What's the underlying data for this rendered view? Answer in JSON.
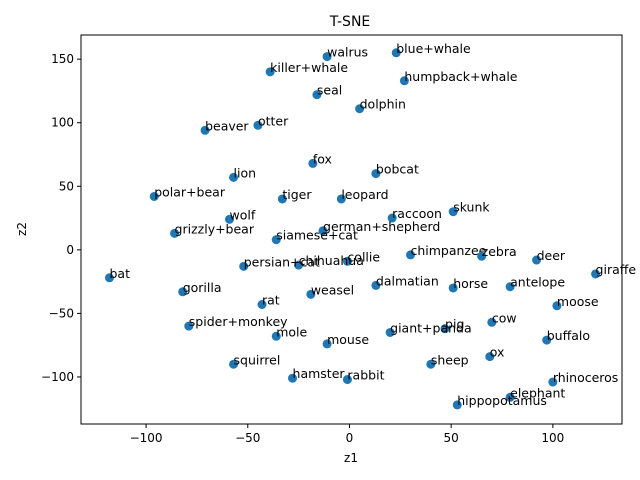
{
  "chart_data": {
    "type": "scatter",
    "title": "T-SNE",
    "xlabel": "z1",
    "ylabel": "z2",
    "xlim": [
      -132,
      134
    ],
    "ylim": [
      -137,
      169
    ],
    "xticks": [
      -100,
      -50,
      0,
      50,
      100
    ],
    "yticks": [
      -100,
      -50,
      0,
      50,
      100,
      150
    ],
    "grid": false,
    "marker_color": "#1f77b4",
    "points": [
      {
        "label": "walrus",
        "x": -11,
        "y": 152
      },
      {
        "label": "blue+whale",
        "x": 23,
        "y": 155
      },
      {
        "label": "killer+whale",
        "x": -39,
        "y": 140
      },
      {
        "label": "humpback+whale",
        "x": 27,
        "y": 133
      },
      {
        "label": "seal",
        "x": -16,
        "y": 122
      },
      {
        "label": "dolphin",
        "x": 5,
        "y": 111
      },
      {
        "label": "otter",
        "x": -45,
        "y": 98
      },
      {
        "label": "beaver",
        "x": -71,
        "y": 94
      },
      {
        "label": "fox",
        "x": -18,
        "y": 68
      },
      {
        "label": "bobcat",
        "x": 13,
        "y": 60
      },
      {
        "label": "lion",
        "x": -57,
        "y": 57
      },
      {
        "label": "polar+bear",
        "x": -96,
        "y": 42
      },
      {
        "label": "tiger",
        "x": -33,
        "y": 40
      },
      {
        "label": "leopard",
        "x": -4,
        "y": 40
      },
      {
        "label": "skunk",
        "x": 51,
        "y": 30
      },
      {
        "label": "raccoon",
        "x": 21,
        "y": 25
      },
      {
        "label": "wolf",
        "x": -59,
        "y": 24
      },
      {
        "label": "german+shepherd",
        "x": -13,
        "y": 15
      },
      {
        "label": "grizzly+bear",
        "x": -86,
        "y": 13
      },
      {
        "label": "siamese+cat",
        "x": -36,
        "y": 8
      },
      {
        "label": "chimpanzee",
        "x": 30,
        "y": -4
      },
      {
        "label": "zebra",
        "x": 65,
        "y": -5
      },
      {
        "label": "collie",
        "x": -1,
        "y": -9
      },
      {
        "label": "deer",
        "x": 92,
        "y": -8
      },
      {
        "label": "chihuahua",
        "x": -25,
        "y": -12
      },
      {
        "label": "persian+cat",
        "x": -52,
        "y": -13
      },
      {
        "label": "giraffe",
        "x": 121,
        "y": -19
      },
      {
        "label": "bat",
        "x": -118,
        "y": -22
      },
      {
        "label": "dalmatian",
        "x": 13,
        "y": -28
      },
      {
        "label": "antelope",
        "x": 79,
        "y": -29
      },
      {
        "label": "horse",
        "x": 51,
        "y": -30
      },
      {
        "label": "gorilla",
        "x": -82,
        "y": -33
      },
      {
        "label": "weasel",
        "x": -19,
        "y": -35
      },
      {
        "label": "rat",
        "x": -43,
        "y": -43
      },
      {
        "label": "moose",
        "x": 102,
        "y": -44
      },
      {
        "label": "cow",
        "x": 70,
        "y": -57
      },
      {
        "label": "spider+monkey",
        "x": -79,
        "y": -60
      },
      {
        "label": "pig",
        "x": 47,
        "y": -62
      },
      {
        "label": "giant+panda",
        "x": 20,
        "y": -65
      },
      {
        "label": "mole",
        "x": -36,
        "y": -68
      },
      {
        "label": "buffalo",
        "x": 97,
        "y": -71
      },
      {
        "label": "mouse",
        "x": -11,
        "y": -74
      },
      {
        "label": "ox",
        "x": 69,
        "y": -84
      },
      {
        "label": "squirrel",
        "x": -57,
        "y": -90
      },
      {
        "label": "sheep",
        "x": 40,
        "y": -90
      },
      {
        "label": "hamster",
        "x": -28,
        "y": -101
      },
      {
        "label": "rabbit",
        "x": -1,
        "y": -102
      },
      {
        "label": "rhinoceros",
        "x": 100,
        "y": -104
      },
      {
        "label": "elephant",
        "x": 79,
        "y": -116
      },
      {
        "label": "hippopotamus",
        "x": 53,
        "y": -122
      }
    ]
  }
}
